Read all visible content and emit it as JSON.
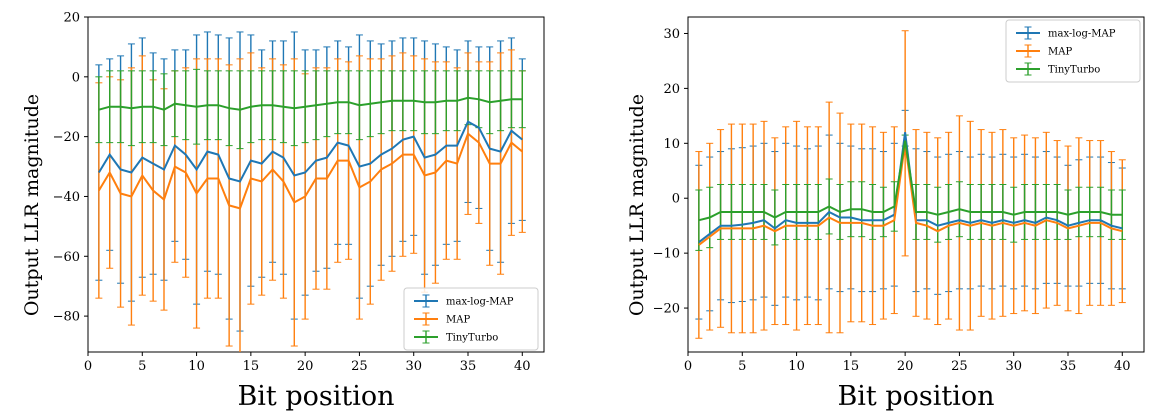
{
  "chart_data": [
    {
      "type": "line",
      "error_bars": true,
      "title": "",
      "xlabel": "Bit position",
      "ylabel": "Output LLR magnitude",
      "xlim": [
        0,
        42
      ],
      "ylim": [
        -92,
        20
      ],
      "xticks": [
        0,
        5,
        10,
        15,
        20,
        25,
        30,
        35,
        40
      ],
      "yticks": [
        20,
        0,
        -20,
        -40,
        -60,
        -80
      ],
      "legend_position": "bottom-right",
      "x": [
        1,
        2,
        3,
        4,
        5,
        6,
        7,
        8,
        9,
        10,
        11,
        12,
        13,
        14,
        15,
        16,
        17,
        18,
        19,
        20,
        21,
        22,
        23,
        24,
        25,
        26,
        27,
        28,
        29,
        30,
        31,
        32,
        33,
        34,
        35,
        36,
        37,
        38,
        39,
        40
      ],
      "series": [
        {
          "name": "max-log-MAP",
          "color": "#1f77b4",
          "values": [
            -32,
            -26,
            -31,
            -32,
            -27,
            -29,
            -31,
            -23,
            -26,
            -31,
            -25,
            -26,
            -34,
            -35,
            -28,
            -29,
            -25,
            -27,
            -33,
            -32,
            -28,
            -27,
            -22,
            -23,
            -30,
            -29,
            -26,
            -24,
            -21,
            -20,
            -27,
            -26,
            -23,
            -23,
            -15,
            -17,
            -24,
            -25,
            -18,
            -21
          ],
          "errors": [
            36,
            32,
            38,
            43,
            40,
            37,
            37,
            32,
            35,
            45,
            40,
            40,
            47,
            50,
            42,
            38,
            37,
            39,
            48,
            41,
            37,
            37,
            34,
            33,
            44,
            41,
            37,
            36,
            34,
            33,
            39,
            37,
            33,
            32,
            27,
            27,
            34,
            37,
            31,
            27
          ]
        },
        {
          "name": "MAP",
          "color": "#ff7f0e",
          "values": [
            -38,
            -32,
            -39,
            -40,
            -33,
            -38,
            -41,
            -30,
            -32,
            -39,
            -34,
            -34,
            -43,
            -44,
            -34,
            -35,
            -31,
            -35,
            -42,
            -40,
            -34,
            -34,
            -28,
            -28,
            -37,
            -35,
            -31,
            -29,
            -26,
            -26,
            -33,
            -32,
            -28,
            -29,
            -19,
            -22,
            -29,
            -29,
            -22,
            -25
          ]
        },
        {
          "name": "TinyTurbo",
          "color": "#2ca02c",
          "values": [
            -11,
            -10,
            -10,
            -10.5,
            -10,
            -10,
            -11,
            -9,
            -9.5,
            -10,
            -9.5,
            -9.5,
            -10.5,
            -11,
            -10,
            -9.5,
            -9.5,
            -10,
            -10.5,
            -10,
            -9.5,
            -9,
            -8.5,
            -8.5,
            -9.5,
            -9,
            -8.5,
            -8,
            -8,
            -8,
            -8.5,
            -8.5,
            -8,
            -8,
            -7,
            -7.5,
            -8.5,
            -8,
            -7.5,
            -7.5
          ],
          "errors": [
            11,
            12,
            12,
            12.5,
            12,
            12,
            12,
            11,
            11.5,
            12.5,
            11.5,
            11.5,
            12.5,
            13,
            12,
            11.5,
            11.5,
            12,
            12.5,
            12,
            11.5,
            11,
            10.5,
            10.5,
            11.5,
            11,
            10.5,
            10,
            10,
            10,
            10.5,
            10.5,
            10,
            10,
            9,
            9.5,
            10.5,
            10,
            9.5,
            9.5
          ]
        }
      ]
    },
    {
      "type": "line",
      "error_bars": true,
      "title": "",
      "xlabel": "Bit position",
      "ylabel": "Output LLR magnitude",
      "xlim": [
        0,
        42
      ],
      "ylim": [
        -28,
        33
      ],
      "xticks": [
        0,
        5,
        10,
        15,
        20,
        25,
        30,
        35,
        40
      ],
      "yticks": [
        30,
        20,
        10,
        0,
        -10,
        -20
      ],
      "legend_position": "top-right",
      "x": [
        1,
        2,
        3,
        4,
        5,
        6,
        7,
        8,
        9,
        10,
        11,
        12,
        13,
        14,
        15,
        16,
        17,
        18,
        19,
        20,
        21,
        22,
        23,
        24,
        25,
        26,
        27,
        28,
        29,
        30,
        31,
        32,
        33,
        34,
        35,
        36,
        37,
        38,
        39,
        40
      ],
      "series": [
        {
          "name": "max-log-MAP",
          "color": "#1f77b4",
          "values": [
            -8,
            -6.5,
            -5,
            -5,
            -4.8,
            -4.5,
            -4,
            -5.5,
            -4,
            -4.5,
            -4.5,
            -4.5,
            -2.5,
            -3.5,
            -3.5,
            -4,
            -4,
            -4,
            -3,
            12,
            -4,
            -4,
            -5,
            -4.5,
            -4,
            -4.5,
            -4,
            -4.5,
            -4,
            -4.5,
            -4,
            -4.5,
            -3.5,
            -4,
            -5,
            -4.5,
            -4,
            -4,
            -5,
            -5.5
          ],
          "errors": [
            14,
            14,
            13.5,
            14,
            14,
            14,
            14,
            14,
            14,
            14,
            13.5,
            14,
            14,
            13.5,
            13,
            13,
            13,
            12.5,
            13,
            4,
            13,
            12.5,
            12.5,
            12.5,
            12.5,
            12,
            12,
            12,
            12,
            12,
            12,
            12,
            12,
            11.5,
            11,
            11.5,
            11.5,
            11.5,
            11.5,
            11
          ]
        },
        {
          "name": "MAP",
          "color": "#ff7f0e",
          "values": [
            -8.5,
            -7,
            -5.5,
            -5.5,
            -5.5,
            -5.5,
            -5,
            -6,
            -5,
            -5,
            -5,
            -5,
            -3.5,
            -4.5,
            -4.5,
            -4.5,
            -5,
            -5,
            -4,
            10,
            -4.5,
            -5,
            -6,
            -5,
            -4.5,
            -5,
            -4.5,
            -5,
            -4.5,
            -5,
            -4.5,
            -5,
            -4,
            -4.5,
            -5.5,
            -5,
            -4.5,
            -4.5,
            -5.5,
            -6
          ],
          "errors": [
            17,
            17,
            18,
            19,
            19,
            19,
            19,
            17,
            18,
            19,
            18,
            18,
            21,
            20,
            18,
            18,
            18,
            17,
            17,
            20.5,
            17,
            17,
            17,
            17,
            19.5,
            19,
            17,
            17,
            17,
            16,
            16,
            16,
            16,
            15,
            15,
            16,
            15,
            15,
            14,
            13
          ]
        },
        {
          "name": "TinyTurbo",
          "color": "#2ca02c",
          "values": [
            -4,
            -3.5,
            -2.5,
            -2.5,
            -2.5,
            -2.5,
            -2.5,
            -3.5,
            -2.5,
            -2.5,
            -2.5,
            -2.5,
            -1.5,
            -2.5,
            -2,
            -2,
            -2.5,
            -2.5,
            -1.5,
            10.5,
            -2.5,
            -2.5,
            -3,
            -2.5,
            -2,
            -2.5,
            -2.5,
            -2.5,
            -2.5,
            -3,
            -2.5,
            -2.5,
            -2.5,
            -2.5,
            -3,
            -2.5,
            -2.5,
            -2.5,
            -3,
            -3
          ],
          "errors": [
            5.5,
            5.5,
            5,
            5,
            5,
            5,
            5,
            5,
            5,
            5,
            5,
            5,
            5,
            5,
            5,
            5,
            5,
            4.5,
            4.5,
            1,
            5,
            5,
            5,
            5,
            5,
            5,
            5,
            5,
            5,
            5,
            5,
            5,
            5,
            5,
            4.5,
            4.5,
            4.5,
            4.5,
            4.5,
            4.5
          ]
        }
      ]
    }
  ]
}
